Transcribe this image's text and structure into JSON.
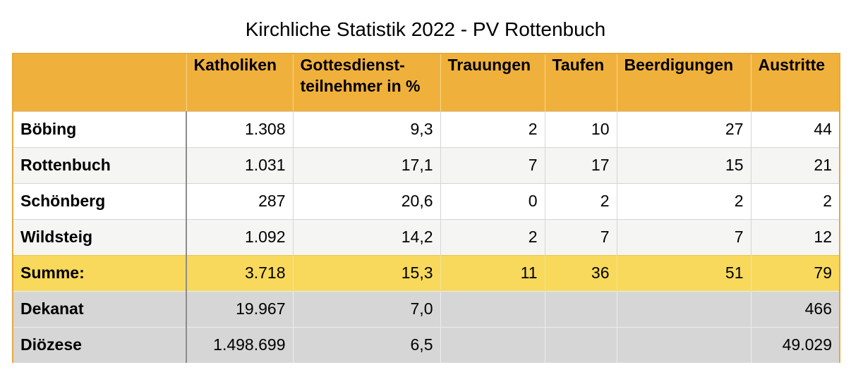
{
  "title": "Kirchliche Statistik 2022 - PV Rottenbuch",
  "colors": {
    "header": "#f0b13c",
    "sum_row": "#f9d95c",
    "grey_rows": "#d6d6d6",
    "border": "#e8a93a"
  },
  "table": {
    "columns": [
      "",
      "Katholiken",
      "Gottesdienst-\nteilnehmer in %",
      "Trauungen",
      "Taufen",
      "Beerdigungen",
      "Austritte"
    ],
    "rows": [
      {
        "cells": [
          "Böbing",
          "1.308",
          "9,3",
          "2",
          "10",
          "27",
          "44"
        ]
      },
      {
        "cells": [
          "Rottenbuch",
          "1.031",
          "17,1",
          "7",
          "17",
          "15",
          "21"
        ]
      },
      {
        "cells": [
          "Schönberg",
          "287",
          "20,6",
          "0",
          "2",
          "2",
          "2"
        ]
      },
      {
        "cells": [
          "Wildsteig",
          "1.092",
          "14,2",
          "2",
          "7",
          "7",
          "12"
        ]
      },
      {
        "cells": [
          "Summe:",
          "3.718",
          "15,3",
          "11",
          "36",
          "51",
          "79"
        ]
      },
      {
        "cells": [
          "Dekanat",
          "19.967",
          "7,0",
          "",
          "",
          "",
          "466"
        ]
      },
      {
        "cells": [
          "Diözese",
          "1.498.699",
          "6,5",
          "",
          "",
          "",
          "49.029"
        ]
      }
    ]
  }
}
